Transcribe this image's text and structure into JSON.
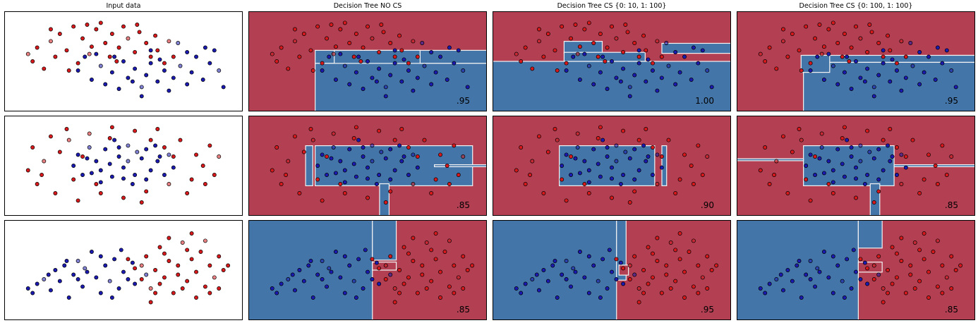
{
  "figure": {
    "columns": [
      {
        "title": "Input data"
      },
      {
        "title": "Decision Tree NO CS"
      },
      {
        "title": "Decision Tree CS {0: 10, 1: 100}"
      },
      {
        "title": "Decision Tree CS {0: 100, 1: 100}"
      }
    ],
    "scores": [
      [
        ".95",
        "1.00",
        ".95"
      ],
      [
        ".85",
        ".90",
        ".85"
      ],
      [
        ".85",
        ".95",
        ".85"
      ]
    ],
    "colors": {
      "red_region": "#b23f52",
      "blue_region": "#4475a8",
      "red_point": "#d7191c",
      "blue_point": "#1a1ab0",
      "boundary": "#f3f3f3"
    }
  },
  "chart_data": {
    "type": "scatter",
    "note_axes": "axes hidden; plots are 2D classification datasets with decision regions",
    "xlim": [
      0,
      1
    ],
    "ylim": [
      0,
      1
    ],
    "datasets": [
      {
        "name": "moons",
        "red": [
          [
            0.1,
            0.5
          ],
          [
            0.12,
            0.65
          ],
          [
            0.15,
            0.42
          ],
          [
            0.18,
            0.72
          ],
          [
            0.2,
            0.55
          ],
          [
            0.22,
            0.8
          ],
          [
            0.25,
            0.62
          ],
          [
            0.28,
            0.88
          ],
          [
            0.3,
            0.48
          ],
          [
            0.32,
            0.75
          ],
          [
            0.35,
            0.58
          ],
          [
            0.38,
            0.85
          ],
          [
            0.4,
            0.92
          ],
          [
            0.42,
            0.7
          ],
          [
            0.45,
            0.8
          ],
          [
            0.48,
            0.65
          ],
          [
            0.5,
            0.88
          ],
          [
            0.52,
            0.75
          ],
          [
            0.55,
            0.6
          ],
          [
            0.57,
            0.82
          ],
          [
            0.6,
            0.7
          ],
          [
            0.62,
            0.55
          ],
          [
            0.65,
            0.62
          ],
          [
            0.68,
            0.48
          ],
          [
            0.7,
            0.72
          ],
          [
            0.26,
            0.4
          ],
          [
            0.36,
            0.66
          ],
          [
            0.44,
            0.55
          ],
          [
            0.18,
            0.85
          ],
          [
            0.56,
            0.9
          ],
          [
            0.64,
            0.78
          ],
          [
            0.08,
            0.58
          ],
          [
            0.34,
            0.9
          ],
          [
            0.47,
            0.5
          ],
          [
            0.72,
            0.55
          ]
        ],
        "blue": [
          [
            0.3,
            0.4
          ],
          [
            0.33,
            0.55
          ],
          [
            0.36,
            0.3
          ],
          [
            0.4,
            0.45
          ],
          [
            0.42,
            0.25
          ],
          [
            0.45,
            0.38
          ],
          [
            0.48,
            0.2
          ],
          [
            0.5,
            0.5
          ],
          [
            0.52,
            0.32
          ],
          [
            0.55,
            0.42
          ],
          [
            0.58,
            0.22
          ],
          [
            0.6,
            0.35
          ],
          [
            0.62,
            0.48
          ],
          [
            0.65,
            0.28
          ],
          [
            0.68,
            0.4
          ],
          [
            0.7,
            0.18
          ],
          [
            0.72,
            0.32
          ],
          [
            0.75,
            0.45
          ],
          [
            0.78,
            0.25
          ],
          [
            0.8,
            0.38
          ],
          [
            0.82,
            0.55
          ],
          [
            0.85,
            0.3
          ],
          [
            0.88,
            0.48
          ],
          [
            0.9,
            0.62
          ],
          [
            0.92,
            0.4
          ],
          [
            0.78,
            0.6
          ],
          [
            0.86,
            0.65
          ],
          [
            0.46,
            0.55
          ],
          [
            0.54,
            0.28
          ],
          [
            0.66,
            0.52
          ],
          [
            0.38,
            0.58
          ],
          [
            0.74,
            0.7
          ],
          [
            0.94,
            0.22
          ],
          [
            0.58,
            0.12
          ],
          [
            0.62,
            0.62
          ]
        ]
      },
      {
        "name": "circles",
        "red": [
          [
            0.08,
            0.45
          ],
          [
            0.1,
            0.7
          ],
          [
            0.12,
            0.3
          ],
          [
            0.15,
            0.55
          ],
          [
            0.18,
            0.82
          ],
          [
            0.2,
            0.2
          ],
          [
            0.22,
            0.65
          ],
          [
            0.25,
            0.9
          ],
          [
            0.28,
            0.35
          ],
          [
            0.3,
            0.12
          ],
          [
            0.35,
            0.85
          ],
          [
            0.4,
            0.2
          ],
          [
            0.45,
            0.92
          ],
          [
            0.5,
            0.15
          ],
          [
            0.55,
            0.88
          ],
          [
            0.6,
            0.22
          ],
          [
            0.65,
            0.9
          ],
          [
            0.7,
            0.3
          ],
          [
            0.75,
            0.78
          ],
          [
            0.8,
            0.35
          ],
          [
            0.82,
            0.62
          ],
          [
            0.85,
            0.5
          ],
          [
            0.88,
            0.72
          ],
          [
            0.9,
            0.4
          ],
          [
            0.92,
            0.6
          ],
          [
            0.32,
            0.6
          ],
          [
            0.38,
            0.3
          ],
          [
            0.62,
            0.78
          ],
          [
            0.68,
            0.7
          ],
          [
            0.72,
            0.6
          ],
          [
            0.14,
            0.4
          ],
          [
            0.26,
            0.78
          ],
          [
            0.78,
            0.2
          ],
          [
            0.58,
            0.1
          ],
          [
            0.44,
            0.8
          ],
          [
            0.86,
            0.3
          ]
        ],
        "blue": [
          [
            0.28,
            0.5
          ],
          [
            0.3,
            0.62
          ],
          [
            0.32,
            0.4
          ],
          [
            0.35,
            0.7
          ],
          [
            0.38,
            0.55
          ],
          [
            0.4,
            0.45
          ],
          [
            0.42,
            0.68
          ],
          [
            0.45,
            0.38
          ],
          [
            0.48,
            0.6
          ],
          [
            0.5,
            0.48
          ],
          [
            0.52,
            0.72
          ],
          [
            0.55,
            0.4
          ],
          [
            0.58,
            0.58
          ],
          [
            0.6,
            0.68
          ],
          [
            0.62,
            0.45
          ],
          [
            0.65,
            0.55
          ],
          [
            0.68,
            0.4
          ],
          [
            0.7,
            0.62
          ],
          [
            0.72,
            0.48
          ],
          [
            0.46,
            0.78
          ],
          [
            0.54,
            0.3
          ],
          [
            0.36,
            0.42
          ],
          [
            0.64,
            0.72
          ],
          [
            0.4,
            0.32
          ],
          [
            0.56,
            0.65
          ],
          [
            0.44,
            0.52
          ],
          [
            0.5,
            0.36
          ],
          [
            0.6,
            0.35
          ],
          [
            0.34,
            0.58
          ],
          [
            0.66,
            0.6
          ],
          [
            0.48,
            0.7
          ],
          [
            0.52,
            0.55
          ]
        ]
      },
      {
        "name": "linear",
        "blue": [
          [
            0.08,
            0.3
          ],
          [
            0.1,
            0.25
          ],
          [
            0.12,
            0.35
          ],
          [
            0.15,
            0.4
          ],
          [
            0.18,
            0.28
          ],
          [
            0.2,
            0.5
          ],
          [
            0.22,
            0.38
          ],
          [
            0.24,
            0.55
          ],
          [
            0.26,
            0.2
          ],
          [
            0.28,
            0.45
          ],
          [
            0.3,
            0.6
          ],
          [
            0.32,
            0.32
          ],
          [
            0.34,
            0.48
          ],
          [
            0.36,
            0.7
          ],
          [
            0.38,
            0.42
          ],
          [
            0.4,
            0.25
          ],
          [
            0.42,
            0.55
          ],
          [
            0.44,
            0.38
          ],
          [
            0.46,
            0.62
          ],
          [
            0.48,
            0.3
          ],
          [
            0.5,
            0.48
          ],
          [
            0.52,
            0.4
          ],
          [
            0.54,
            0.58
          ],
          [
            0.45,
            0.2
          ],
          [
            0.33,
            0.52
          ],
          [
            0.4,
            0.65
          ],
          [
            0.55,
            0.35
          ],
          [
            0.25,
            0.6
          ],
          [
            0.17,
            0.45
          ],
          [
            0.49,
            0.72
          ],
          [
            0.3,
            0.4
          ],
          [
            0.6,
            0.45
          ]
        ],
        "red": [
          [
            0.55,
            0.52
          ],
          [
            0.58,
            0.4
          ],
          [
            0.6,
            0.65
          ],
          [
            0.62,
            0.3
          ],
          [
            0.64,
            0.5
          ],
          [
            0.66,
            0.75
          ],
          [
            0.68,
            0.42
          ],
          [
            0.7,
            0.6
          ],
          [
            0.72,
            0.25
          ],
          [
            0.74,
            0.55
          ],
          [
            0.76,
            0.8
          ],
          [
            0.78,
            0.38
          ],
          [
            0.8,
            0.62
          ],
          [
            0.82,
            0.48
          ],
          [
            0.84,
            0.7
          ],
          [
            0.86,
            0.32
          ],
          [
            0.88,
            0.55
          ],
          [
            0.9,
            0.42
          ],
          [
            0.92,
            0.65
          ],
          [
            0.94,
            0.5
          ],
          [
            0.7,
            0.85
          ],
          [
            0.76,
            0.3
          ],
          [
            0.82,
            0.2
          ],
          [
            0.64,
            0.25
          ],
          [
            0.86,
            0.82
          ],
          [
            0.92,
            0.3
          ],
          [
            0.62,
            0.15
          ],
          [
            0.68,
            0.68
          ],
          [
            0.74,
            0.45
          ],
          [
            0.8,
            0.9
          ],
          [
            0.66,
            0.35
          ],
          [
            0.58,
            0.55
          ],
          [
            0.96,
            0.55
          ],
          [
            0.52,
            0.62
          ],
          [
            0.78,
            0.72
          ],
          [
            0.88,
            0.25
          ]
        ]
      }
    ],
    "regions_red_background_blue_boxes": [
      [
        [
          [
            0.75,
            0.0,
            0.25,
            0.58
          ],
          [
            0.28,
            0.48,
            0.72,
            0.13
          ],
          [
            0.36,
            0.39,
            0.36,
            0.22
          ],
          [
            0.28,
            0.0,
            0.72,
            0.48
          ]
        ],
        [
          [
            0.0,
            0.0,
            1.0,
            0.5
          ],
          [
            0.3,
            0.58,
            0.16,
            0.12
          ],
          [
            0.71,
            0.58,
            0.29,
            0.1
          ],
          [
            0.3,
            0.5,
            0.34,
            0.09
          ]
        ],
        [
          [
            0.88,
            0.0,
            0.12,
            0.56
          ],
          [
            0.28,
            0.49,
            0.72,
            0.07
          ],
          [
            0.28,
            0.0,
            0.72,
            0.49
          ],
          [
            0.27,
            0.39,
            0.12,
            0.17
          ]
        ]
      ],
      [
        [
          [
            0.28,
            0.3,
            0.66,
            0.4
          ],
          [
            0.24,
            0.3,
            0.03,
            0.4
          ],
          [
            0.55,
            0.0,
            0.04,
            0.32
          ],
          [
            0.78,
            0.49,
            0.22,
            0.02
          ]
        ],
        [
          [
            0.28,
            0.3,
            0.4,
            0.4
          ],
          [
            0.71,
            0.3,
            0.02,
            0.4
          ]
        ],
        [
          [
            0.28,
            0.3,
            0.38,
            0.4
          ],
          [
            0.0,
            0.55,
            0.28,
            0.02
          ],
          [
            0.56,
            0.0,
            0.04,
            0.32
          ],
          [
            0.66,
            0.49,
            0.34,
            0.02
          ]
        ]
      ],
      [
        [
          [
            0.0,
            0.0,
            0.52,
            1.0
          ],
          [
            0.52,
            0.6,
            0.1,
            0.4
          ]
        ],
        [
          [
            0.0,
            0.0,
            0.52,
            1.0
          ],
          [
            0.52,
            0.4,
            0.04,
            0.6
          ]
        ],
        [
          [
            0.0,
            0.0,
            0.51,
            1.0
          ],
          [
            0.51,
            0.72,
            0.1,
            0.28
          ]
        ]
      ]
    ],
    "regions_red_patches_in_blue": [
      [
        [],
        [],
        []
      ],
      [
        [],
        [],
        []
      ],
      [
        [
          [
            0.52,
            0.5,
            0.1,
            0.08
          ]
        ],
        [
          [
            0.53,
            0.45,
            0.04,
            0.1
          ]
        ],
        [
          [
            0.51,
            0.48,
            0.1,
            0.1
          ]
        ]
      ]
    ]
  }
}
